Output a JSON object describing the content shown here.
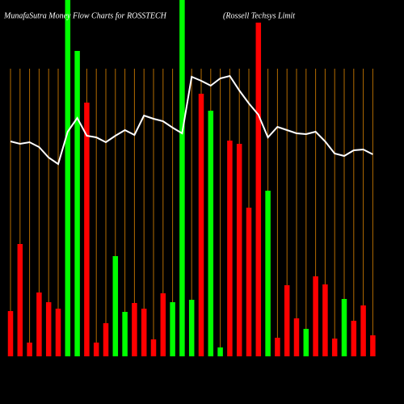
{
  "chart_data": {
    "type": "bar",
    "title": "MunafaSutra  Money Flow  Charts for ROSSTECH",
    "subtitle": "(Rossell Techsys Limit",
    "ylim": [
      0,
      441
    ],
    "grid": true,
    "grid_color": "#b36b00",
    "line_color": "#ffffff",
    "series": [
      {
        "values": [
          56,
          139,
          17,
          79,
          67,
          59,
          441,
          378,
          314,
          17,
          41,
          124,
          55,
          66,
          59,
          21,
          78,
          67,
          441,
          70,
          325,
          304,
          11,
          267,
          263,
          184,
          413,
          205,
          23,
          88,
          47,
          34,
          99,
          89,
          22,
          71,
          44,
          63,
          26
        ],
        "colors": [
          "#ff0000",
          "#ff0000",
          "#ff0000",
          "#ff0000",
          "#ff0000",
          "#ff0000",
          "#00ff00",
          "#00ff00",
          "#ff0000",
          "#ff0000",
          "#ff0000",
          "#00ff00",
          "#00ff00",
          "#ff0000",
          "#ff0000",
          "#ff0000",
          "#ff0000",
          "#00ff00",
          "#00ff00",
          "#00ff00",
          "#ff0000",
          "#00ff00",
          "#00ff00",
          "#ff0000",
          "#ff0000",
          "#ff0000",
          "#ff0000",
          "#00ff00",
          "#ff0000",
          "#ff0000",
          "#ff0000",
          "#00ff00",
          "#ff0000",
          "#ff0000",
          "#ff0000",
          "#00ff00",
          "#ff0000",
          "#ff0000",
          "#ff0000"
        ]
      },
      {
        "type": "line",
        "values": [
          266,
          263,
          265,
          259,
          246,
          238,
          278,
          295,
          273,
          271,
          265,
          273,
          280,
          274,
          298,
          294,
          291,
          283,
          276,
          346,
          341,
          335,
          344,
          347,
          329,
          313,
          299,
          271,
          284,
          280,
          276,
          275,
          278,
          266,
          251,
          248,
          255,
          256,
          250
        ]
      }
    ]
  }
}
